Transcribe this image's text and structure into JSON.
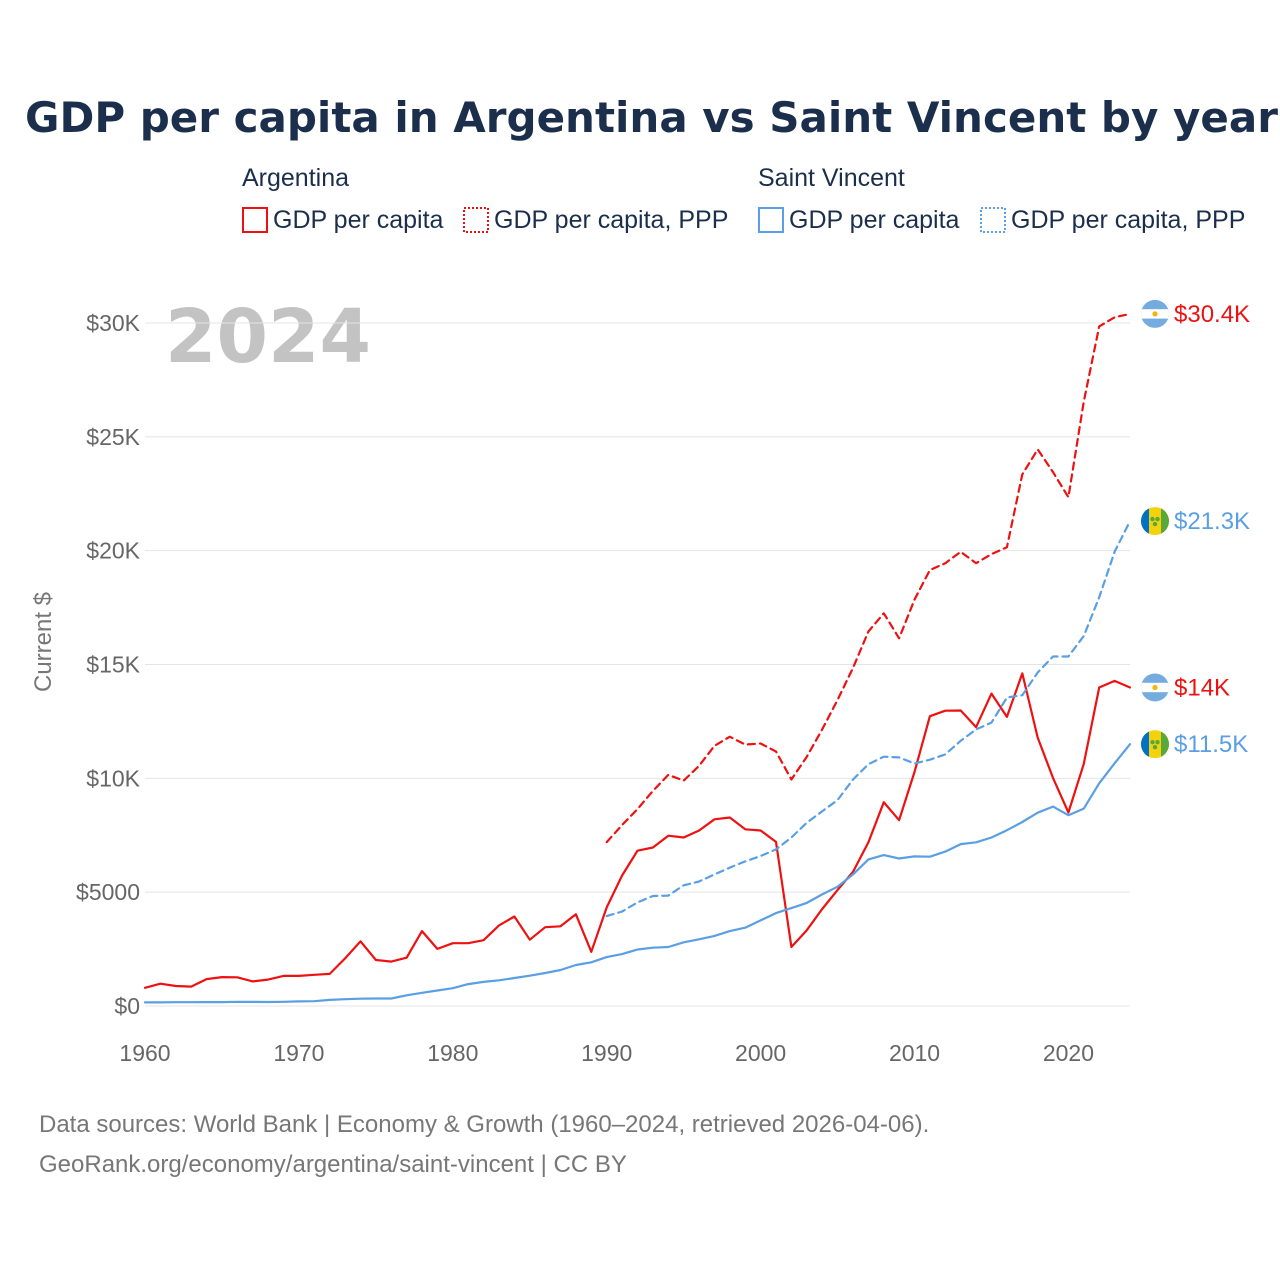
{
  "colors": {
    "argentina": "#ee1111",
    "saint_vincent": "#5a9fe3",
    "title": "#1b2f4d",
    "muted": "#777777",
    "grid": "#e4e4e4",
    "year": "#c3c3c3"
  },
  "chart_data": {
    "type": "line",
    "title": "GDP per capita in Argentina vs Saint Vincent by year",
    "ylabel": "Current $",
    "xlabel": "",
    "current_year": "2024",
    "xlim": [
      1960,
      2024
    ],
    "ylim": [
      0,
      30500
    ],
    "x_ticks": [
      {
        "value": 1960,
        "label": "1960"
      },
      {
        "value": 1970,
        "label": "1970"
      },
      {
        "value": 1980,
        "label": "1980"
      },
      {
        "value": 1990,
        "label": "1990"
      },
      {
        "value": 2000,
        "label": "2000"
      },
      {
        "value": 2010,
        "label": "2010"
      },
      {
        "value": 2020,
        "label": "2020"
      }
    ],
    "y_ticks": [
      {
        "value": 0,
        "label": "$0"
      },
      {
        "value": 5000,
        "label": "$5000"
      },
      {
        "value": 10000,
        "label": "$10K"
      },
      {
        "value": 15000,
        "label": "$15K"
      },
      {
        "value": 20000,
        "label": "$20K"
      },
      {
        "value": 25000,
        "label": "$25K"
      },
      {
        "value": 30000,
        "label": "$30K"
      }
    ],
    "legend": [
      {
        "group": "Argentina",
        "items": [
          {
            "label": "GDP per capita",
            "style": "solid",
            "color": "#ee1111"
          },
          {
            "label": "GDP per capita, PPP",
            "style": "dotted",
            "color": "#ee1111"
          }
        ]
      },
      {
        "group": "Saint Vincent",
        "items": [
          {
            "label": "GDP per capita",
            "style": "solid",
            "color": "#5a9fe3"
          },
          {
            "label": "GDP per capita, PPP",
            "style": "dotted",
            "color": "#5a9fe3"
          }
        ]
      }
    ],
    "series": [
      {
        "name": "Argentina GDP per capita",
        "country": "argentina",
        "style": "solid",
        "color": "#ee1111",
        "start_year": 1960,
        "values": [
          800,
          980,
          880,
          850,
          1180,
          1270,
          1260,
          1080,
          1160,
          1320,
          1320,
          1370,
          1410,
          2090,
          2840,
          2020,
          1950,
          2120,
          3290,
          2510,
          2760,
          2760,
          2890,
          3540,
          3930,
          2910,
          3460,
          3500,
          4030,
          2380,
          4330,
          5730,
          6820,
          6960,
          7480,
          7400,
          7710,
          8200,
          8280,
          7760,
          7710,
          7210,
          2590,
          3330,
          4260,
          5100,
          5890,
          7190,
          8950,
          8160,
          10280,
          12730,
          12970,
          12980,
          12250,
          13720,
          12700,
          14610,
          11790,
          10020,
          8500,
          10640,
          13990,
          14280,
          13990
        ],
        "end_label": "$14K"
      },
      {
        "name": "Argentina GDP per capita, PPP",
        "country": "argentina",
        "style": "dashed",
        "color": "#ee1111",
        "start_year": 1990,
        "values": [
          7200,
          7950,
          8650,
          9450,
          10150,
          9900,
          10550,
          11430,
          11830,
          11480,
          11530,
          11180,
          9950,
          10950,
          12150,
          13450,
          14850,
          16450,
          17250,
          16150,
          17850,
          19150,
          19450,
          19950,
          19450,
          19850,
          20150,
          23350,
          24450,
          23450,
          22350,
          26550,
          29850,
          30250,
          30400
        ],
        "end_label": "$30.4K"
      },
      {
        "name": "Saint Vincent GDP per capita",
        "country": "saint_vincent",
        "style": "solid",
        "color": "#5a9fe3",
        "start_year": 1960,
        "values": [
          160,
          160,
          165,
          165,
          170,
          170,
          185,
          180,
          175,
          185,
          200,
          210,
          270,
          300,
          320,
          330,
          330,
          470,
          580,
          680,
          780,
          960,
          1060,
          1130,
          1230,
          1330,
          1450,
          1580,
          1800,
          1920,
          2150,
          2280,
          2480,
          2560,
          2590,
          2800,
          2930,
          3080,
          3290,
          3440,
          3760,
          4080,
          4300,
          4530,
          4900,
          5240,
          5780,
          6440,
          6630,
          6480,
          6570,
          6560,
          6780,
          7110,
          7190,
          7400,
          7720,
          8080,
          8490,
          8760,
          8380,
          8670,
          9780,
          10660,
          11500
        ],
        "end_label": "$11.5K"
      },
      {
        "name": "Saint Vincent GDP per capita, PPP",
        "country": "saint_vincent",
        "style": "dashed",
        "color": "#5a9fe3",
        "start_year": 1990,
        "values": [
          3950,
          4150,
          4550,
          4830,
          4850,
          5300,
          5470,
          5780,
          6080,
          6350,
          6590,
          6880,
          7400,
          8050,
          8550,
          9050,
          9950,
          10620,
          10950,
          10920,
          10650,
          10820,
          11050,
          11650,
          12150,
          12450,
          13550,
          13650,
          14650,
          15350,
          15350,
          16250,
          17950,
          19950,
          21300
        ],
        "end_label": "$21.3K"
      }
    ]
  },
  "source": {
    "line1": "Data sources: World Bank | Economy & Growth (1960–2024, retrieved 2026-04-06).",
    "line2": "GeoRank.org/economy/argentina/saint-vincent | CC BY"
  }
}
